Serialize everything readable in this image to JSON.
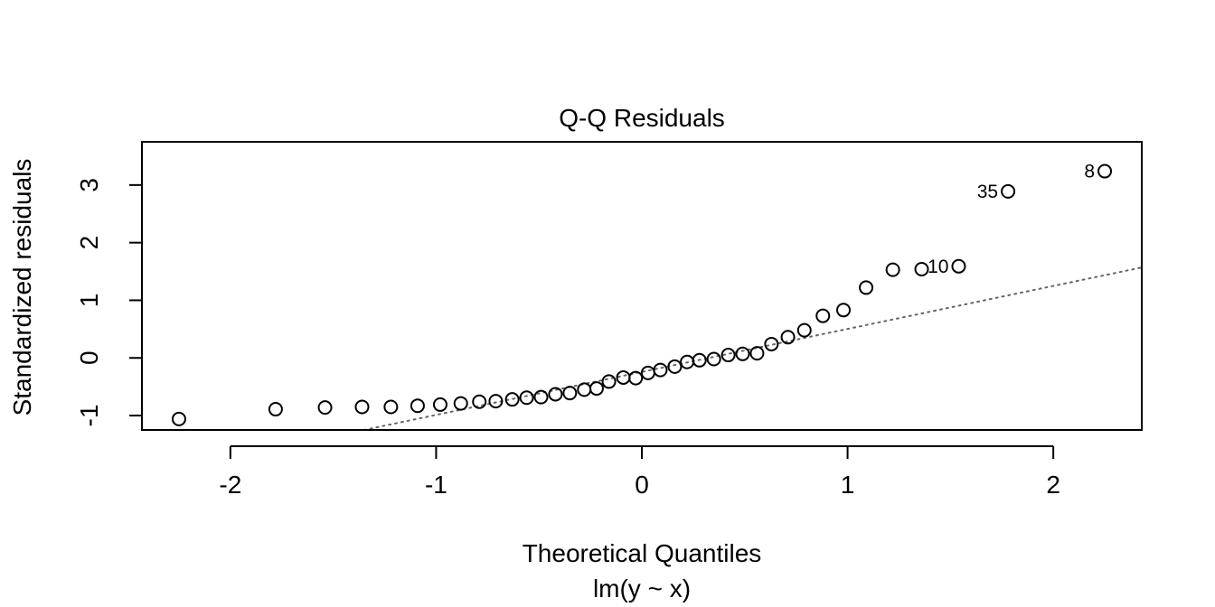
{
  "chart_data": {
    "type": "scatter",
    "title": "Q-Q Residuals",
    "xlabel": "Theoretical Quantiles",
    "subtitle": "lm(y ~ x)",
    "ylabel": "Standardized residuals",
    "xlim": [
      -2.43,
      2.43
    ],
    "ylim": [
      -1.25,
      3.75
    ],
    "x_ticks": [
      -2,
      -1,
      0,
      1,
      2
    ],
    "y_ticks": [
      -1,
      0,
      1,
      2,
      3
    ],
    "x_tick_labels": [
      "-2",
      "-1",
      "0",
      "1",
      "2"
    ],
    "y_tick_labels": [
      "-1",
      "0",
      "1",
      "2",
      "3"
    ],
    "grid": false,
    "reference_line": {
      "style": "dotted",
      "x1": -1.35,
      "y1": -1.25,
      "x2": 2.43,
      "y2": 1.57
    },
    "points": [
      {
        "x": -2.25,
        "y": -1.06
      },
      {
        "x": -1.78,
        "y": -0.89
      },
      {
        "x": -1.54,
        "y": -0.86
      },
      {
        "x": -1.36,
        "y": -0.85
      },
      {
        "x": -1.22,
        "y": -0.85
      },
      {
        "x": -1.09,
        "y": -0.83
      },
      {
        "x": -0.98,
        "y": -0.81
      },
      {
        "x": -0.88,
        "y": -0.79
      },
      {
        "x": -0.79,
        "y": -0.76
      },
      {
        "x": -0.71,
        "y": -0.75
      },
      {
        "x": -0.63,
        "y": -0.72
      },
      {
        "x": -0.56,
        "y": -0.69
      },
      {
        "x": -0.49,
        "y": -0.68
      },
      {
        "x": -0.42,
        "y": -0.63
      },
      {
        "x": -0.35,
        "y": -0.61
      },
      {
        "x": -0.28,
        "y": -0.55
      },
      {
        "x": -0.22,
        "y": -0.53
      },
      {
        "x": -0.16,
        "y": -0.41
      },
      {
        "x": -0.09,
        "y": -0.34
      },
      {
        "x": -0.03,
        "y": -0.35
      },
      {
        "x": 0.03,
        "y": -0.26
      },
      {
        "x": 0.09,
        "y": -0.21
      },
      {
        "x": 0.16,
        "y": -0.15
      },
      {
        "x": 0.22,
        "y": -0.07
      },
      {
        "x": 0.28,
        "y": -0.04
      },
      {
        "x": 0.35,
        "y": -0.02
      },
      {
        "x": 0.42,
        "y": 0.05
      },
      {
        "x": 0.49,
        "y": 0.07
      },
      {
        "x": 0.56,
        "y": 0.08
      },
      {
        "x": 0.63,
        "y": 0.24
      },
      {
        "x": 0.71,
        "y": 0.36
      },
      {
        "x": 0.79,
        "y": 0.48
      },
      {
        "x": 0.88,
        "y": 0.73
      },
      {
        "x": 0.98,
        "y": 0.83
      },
      {
        "x": 1.09,
        "y": 1.22
      },
      {
        "x": 1.22,
        "y": 1.53
      },
      {
        "x": 1.36,
        "y": 1.54
      },
      {
        "x": 1.54,
        "y": 1.59,
        "label": "10"
      },
      {
        "x": 1.78,
        "y": 2.89,
        "label": "35"
      },
      {
        "x": 2.25,
        "y": 3.24,
        "label": "8"
      }
    ]
  }
}
